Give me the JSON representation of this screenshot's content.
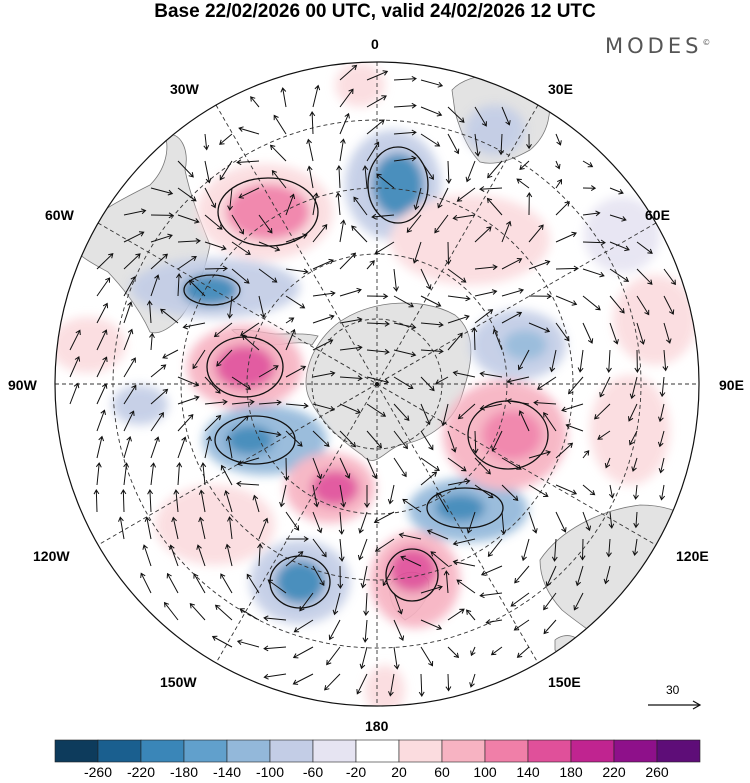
{
  "title": "Base 22/02/2026 00 UTC, valid 24/02/2026 12 UTC",
  "brand": {
    "name": "MODES",
    "mark": "©"
  },
  "map": {
    "projection": "south polar stereographic",
    "meridian_labels": {
      "lon_0": "0",
      "lon_30e": "30E",
      "lon_60e": "60E",
      "lon_90e": "90E",
      "lon_120e": "120E",
      "lon_150e": "150E",
      "lon_180": "180",
      "lon_150w": "150W",
      "lon_120w": "120W",
      "lon_90w": "90W",
      "lon_60w": "60W",
      "lon_30w": "30W"
    },
    "reference_vector": {
      "value": "30"
    }
  },
  "colorbar": {
    "ticks": [
      "-260",
      "-220",
      "-180",
      "-140",
      "-100",
      "-60",
      "-20",
      "20",
      "60",
      "100",
      "140",
      "180",
      "220",
      "260"
    ],
    "colors": [
      "#0d3b5c",
      "#1a5f8f",
      "#3a86b8",
      "#61a0cc",
      "#93b8da",
      "#c3cde6",
      "#e6e4f2",
      "#ffffff",
      "#fbdcdf",
      "#f7b3c2",
      "#f07fa8",
      "#e0509a",
      "#c02490",
      "#8e108a",
      "#5e0d78"
    ]
  }
}
